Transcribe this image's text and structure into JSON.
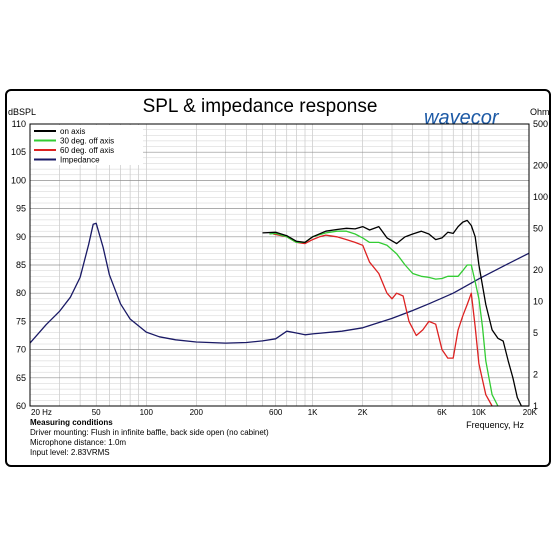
{
  "brand": {
    "logo_text": "wavecor",
    "logo_color": "#1d5aa6"
  },
  "chart_data": {
    "type": "line",
    "title": "SPL & impedance response",
    "y_left_label": "dBSPL",
    "y_right_label": "Ohm",
    "xlabel": "Frequency, Hz",
    "x_scale": "log",
    "xlim": [
      20,
      20000
    ],
    "ylim_left": [
      60,
      110
    ],
    "ylim_right_log": [
      1,
      500
    ],
    "grid": true,
    "legend_position": "top-left",
    "x_tick_labels": [
      {
        "v": 20,
        "label": "20 Hz"
      },
      {
        "v": 50,
        "label": "50"
      },
      {
        "v": 100,
        "label": "100"
      },
      {
        "v": 200,
        "label": "200"
      },
      {
        "v": 600,
        "label": "600"
      },
      {
        "v": 1000,
        "label": "1K"
      },
      {
        "v": 2000,
        "label": "2K"
      },
      {
        "v": 6000,
        "label": "6K"
      },
      {
        "v": 10000,
        "label": "10K"
      },
      {
        "v": 20000,
        "label": "20K"
      }
    ],
    "y_left_ticks": [
      60,
      65,
      70,
      75,
      80,
      85,
      90,
      95,
      100,
      105,
      110
    ],
    "y_right_ticks": [
      1,
      2,
      5,
      10,
      20,
      50,
      100,
      200,
      500
    ],
    "series": [
      {
        "name": "on axis",
        "axis": "left",
        "color": "#000000",
        "x": [
          500,
          600,
          700,
          800,
          900,
          1000,
          1200,
          1400,
          1600,
          1800,
          2000,
          2200,
          2500,
          2800,
          3200,
          3600,
          4000,
          4500,
          5000,
          5500,
          6000,
          6500,
          7000,
          7500,
          8000,
          8500,
          9000,
          9500,
          10000,
          11000,
          12000,
          13000,
          14000,
          15000,
          16000,
          17000,
          18000,
          20000
        ],
        "y": [
          90.7,
          90.8,
          90.2,
          89.2,
          89.0,
          90.0,
          91.0,
          91.3,
          91.5,
          91.4,
          91.8,
          91.2,
          91.8,
          89.8,
          88.8,
          90.0,
          90.5,
          91.0,
          90.5,
          89.5,
          89.8,
          90.8,
          90.6,
          91.8,
          92.6,
          92.9,
          92.0,
          90.0,
          85.0,
          78.0,
          73.5,
          72.0,
          71.5,
          68.0,
          65.0,
          61.5,
          60.0,
          60.0
        ]
      },
      {
        "name": "30 deg. off axis",
        "axis": "left",
        "color": "#33cc33",
        "x": [
          550,
          600,
          700,
          800,
          900,
          1000,
          1200,
          1400,
          1600,
          1800,
          2000,
          2200,
          2500,
          2800,
          3200,
          3600,
          4000,
          4500,
          5000,
          5500,
          6000,
          6500,
          7000,
          7500,
          8000,
          8500,
          9000,
          9500,
          10000,
          10500,
          11000,
          12000,
          13000
        ],
        "y": [
          90.5,
          90.6,
          90.0,
          89.0,
          89.0,
          90.0,
          90.7,
          91.0,
          91.0,
          90.5,
          89.8,
          89.0,
          89.0,
          88.5,
          87.0,
          85.0,
          83.5,
          83.0,
          82.8,
          82.5,
          82.6,
          83.0,
          83.0,
          83.0,
          84.0,
          85.0,
          85.0,
          82.0,
          79.0,
          74.0,
          68.0,
          62.0,
          60.0
        ]
      },
      {
        "name": "60 deg. off axis",
        "axis": "left",
        "color": "#dd2222",
        "x": [
          580,
          600,
          700,
          800,
          900,
          1000,
          1100,
          1200,
          1400,
          1600,
          1800,
          2000,
          2200,
          2500,
          2800,
          3000,
          3200,
          3500,
          3800,
          4200,
          4600,
          5000,
          5500,
          6000,
          6500,
          7000,
          7500,
          8000,
          8500,
          9000,
          9500,
          10000,
          11000,
          12000
        ],
        "y": [
          90.5,
          90.4,
          90.0,
          89.0,
          88.8,
          89.5,
          90.0,
          90.3,
          90.0,
          89.5,
          89.0,
          88.5,
          85.5,
          83.5,
          80.0,
          79.0,
          80.0,
          79.5,
          75.0,
          72.5,
          73.5,
          75.0,
          74.5,
          70.0,
          68.5,
          68.5,
          73.5,
          76.0,
          78.0,
          80.0,
          74.0,
          67.5,
          62.0,
          60.0
        ]
      },
      {
        "name": "Impedance",
        "axis": "right",
        "color": "#1a1a66",
        "x": [
          20,
          25,
          30,
          35,
          40,
          45,
          48,
          50,
          55,
          60,
          70,
          80,
          100,
          120,
          150,
          200,
          300,
          400,
          500,
          600,
          650,
          700,
          800,
          900,
          1000,
          1500,
          2000,
          3000,
          4000,
          5000,
          7000,
          10000,
          15000,
          20000
        ],
        "y": [
          4.0,
          6.0,
          8.0,
          11.0,
          17.0,
          35.0,
          55.0,
          56.0,
          33.0,
          18.0,
          9.5,
          6.8,
          5.1,
          4.6,
          4.3,
          4.1,
          4.0,
          4.05,
          4.2,
          4.4,
          4.8,
          5.2,
          5.0,
          4.8,
          4.9,
          5.2,
          5.6,
          6.9,
          8.2,
          9.5,
          12.0,
          16.5,
          23.0,
          29.0
        ]
      }
    ]
  },
  "notes": {
    "heading": "Measuring conditions",
    "lines": [
      "Driver mounting: Flush in infinite baffle, back side open (no cabinet)",
      "Microphone distance: 1.0m",
      "Input level: 2.83VRMS"
    ]
  }
}
